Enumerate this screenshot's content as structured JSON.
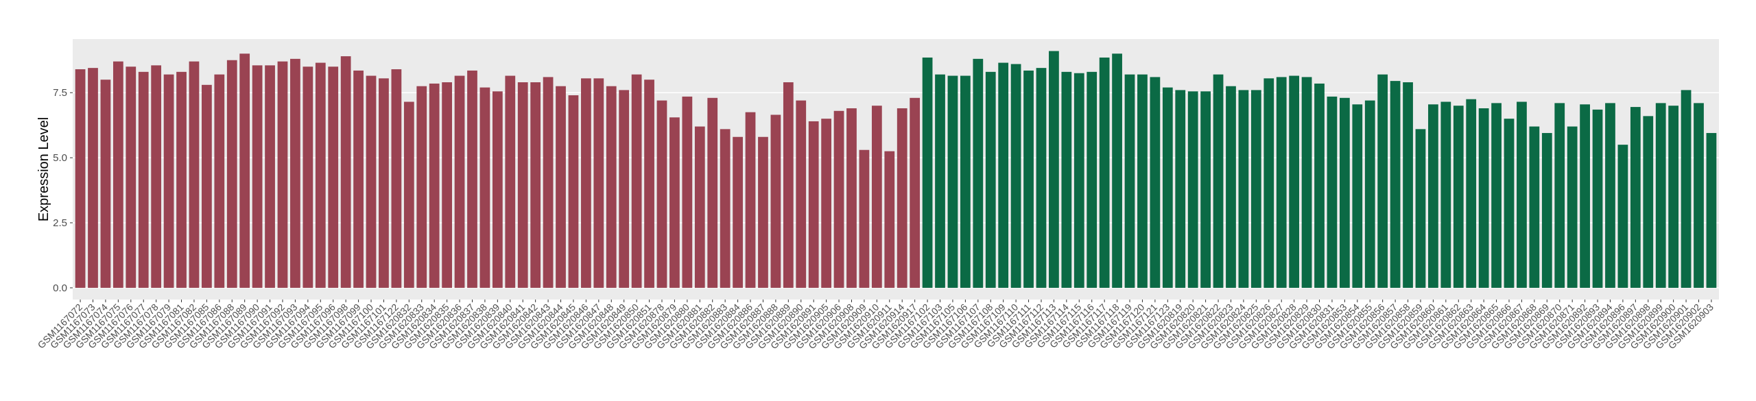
{
  "chart_data": {
    "type": "bar",
    "y_label": "Expression Level",
    "categories": [
      "GSM1167072",
      "GSM1167073",
      "GSM1167074",
      "GSM1167075",
      "GSM1167076",
      "GSM1167077",
      "GSM1167078",
      "GSM1167079",
      "GSM1167081",
      "GSM1167082",
      "GSM1167085",
      "GSM1167086",
      "GSM1167088",
      "GSM1167089",
      "GSM1167090",
      "GSM1167091",
      "GSM1167092",
      "GSM1167093",
      "GSM1167094",
      "GSM1167095",
      "GSM1167096",
      "GSM1167098",
      "GSM1167099",
      "GSM1167100",
      "GSM1167101",
      "GSM1167122",
      "GSM1620832",
      "GSM1620833",
      "GSM1620834",
      "GSM1620835",
      "GSM1620836",
      "GSM1620837",
      "GSM1620838",
      "GSM1620839",
      "GSM1620840",
      "GSM1620841",
      "GSM1620842",
      "GSM1620843",
      "GSM1620844",
      "GSM1620845",
      "GSM1620846",
      "GSM1620847",
      "GSM1620848",
      "GSM1620849",
      "GSM1620850",
      "GSM1620851",
      "GSM1620878",
      "GSM1620879",
      "GSM1620880",
      "GSM1620881",
      "GSM1620882",
      "GSM1620883",
      "GSM1620884",
      "GSM1620886",
      "GSM1620887",
      "GSM1620888",
      "GSM1620889",
      "GSM1620890",
      "GSM1620891",
      "GSM1620905",
      "GSM1620906",
      "GSM1620908",
      "GSM1620909",
      "GSM1620910",
      "GSM1620911",
      "GSM1620914",
      "GSM1620917",
      "GSM1167102",
      "GSM1167103",
      "GSM1167105",
      "GSM1167106",
      "GSM1167107",
      "GSM1167108",
      "GSM1167109",
      "GSM1167110",
      "GSM1167111",
      "GSM1167112",
      "GSM1167113",
      "GSM1167114",
      "GSM1167115",
      "GSM1167116",
      "GSM1167117",
      "GSM1167118",
      "GSM1167119",
      "GSM1167120",
      "GSM1167121",
      "GSM1167123",
      "GSM1620819",
      "GSM1620820",
      "GSM1620821",
      "GSM1620822",
      "GSM1620823",
      "GSM1620824",
      "GSM1620825",
      "GSM1620826",
      "GSM1620827",
      "GSM1620828",
      "GSM1620829",
      "GSM1620830",
      "GSM1620831",
      "GSM1620853",
      "GSM1620854",
      "GSM1620855",
      "GSM1620856",
      "GSM1620857",
      "GSM1620858",
      "GSM1620859",
      "GSM1620860",
      "GSM1620861",
      "GSM1620862",
      "GSM1620863",
      "GSM1620864",
      "GSM1620865",
      "GSM1620866",
      "GSM1620867",
      "GSM1620868",
      "GSM1620869",
      "GSM1620870",
      "GSM1620871",
      "GSM1620892",
      "GSM1620893",
      "GSM1620894",
      "GSM1620896",
      "GSM1620897",
      "GSM1620898",
      "GSM1620899",
      "GSM1620900",
      "GSM1620901",
      "GSM1620902",
      "GSM1620903"
    ],
    "values": [
      8.4,
      8.45,
      8.0,
      8.7,
      8.5,
      8.3,
      8.55,
      8.2,
      8.3,
      8.7,
      7.8,
      8.2,
      8.75,
      9.0,
      8.55,
      8.55,
      8.7,
      8.8,
      8.5,
      8.65,
      8.5,
      8.9,
      8.35,
      8.15,
      8.05,
      8.4,
      7.15,
      7.75,
      7.85,
      7.9,
      8.15,
      8.35,
      7.7,
      7.55,
      8.15,
      7.9,
      7.9,
      8.1,
      7.75,
      7.4,
      8.05,
      8.05,
      7.75,
      7.6,
      8.2,
      8.0,
      7.2,
      6.55,
      7.35,
      6.2,
      7.3,
      6.1,
      5.8,
      6.75,
      5.8,
      6.65,
      7.9,
      7.2,
      6.4,
      6.5,
      6.8,
      6.9,
      5.3,
      7.0,
      5.25,
      6.9,
      7.3,
      8.85,
      8.2,
      8.15,
      8.15,
      8.8,
      8.3,
      8.65,
      8.6,
      8.35,
      8.45,
      9.1,
      8.3,
      8.25,
      8.3,
      8.85,
      9.0,
      8.2,
      8.2,
      8.1,
      7.7,
      7.6,
      7.55,
      7.55,
      8.2,
      7.75,
      7.6,
      7.6,
      8.05,
      8.1,
      8.15,
      8.1,
      7.85,
      7.35,
      7.3,
      7.05,
      7.2,
      8.2,
      7.95,
      7.9,
      6.1,
      7.05,
      7.15,
      7.0,
      7.25,
      6.9,
      7.1,
      6.5,
      7.15,
      6.2,
      5.95,
      7.1,
      6.2,
      7.05,
      6.85,
      7.1,
      5.5,
      6.95,
      6.6,
      7.1,
      7.0,
      7.6,
      7.1,
      5.95
    ],
    "colors": [
      "#9a4352",
      "#9a4352",
      "#9a4352",
      "#9a4352",
      "#9a4352",
      "#9a4352",
      "#9a4352",
      "#9a4352",
      "#9a4352",
      "#9a4352",
      "#9a4352",
      "#9a4352",
      "#9a4352",
      "#9a4352",
      "#9a4352",
      "#9a4352",
      "#9a4352",
      "#9a4352",
      "#9a4352",
      "#9a4352",
      "#9a4352",
      "#9a4352",
      "#9a4352",
      "#9a4352",
      "#9a4352",
      "#9a4352",
      "#9a4352",
      "#9a4352",
      "#9a4352",
      "#9a4352",
      "#9a4352",
      "#9a4352",
      "#9a4352",
      "#9a4352",
      "#9a4352",
      "#9a4352",
      "#9a4352",
      "#9a4352",
      "#9a4352",
      "#9a4352",
      "#9a4352",
      "#9a4352",
      "#9a4352",
      "#9a4352",
      "#9a4352",
      "#9a4352",
      "#9a4352",
      "#9a4352",
      "#9a4352",
      "#9a4352",
      "#9a4352",
      "#9a4352",
      "#9a4352",
      "#9a4352",
      "#9a4352",
      "#9a4352",
      "#9a4352",
      "#9a4352",
      "#9a4352",
      "#9a4352",
      "#9a4352",
      "#9a4352",
      "#9a4352",
      "#9a4352",
      "#9a4352",
      "#9a4352",
      "#9a4352",
      "#0b6a45",
      "#0b6a45",
      "#0b6a45",
      "#0b6a45",
      "#0b6a45",
      "#0b6a45",
      "#0b6a45",
      "#0b6a45",
      "#0b6a45",
      "#0b6a45",
      "#0b6a45",
      "#0b6a45",
      "#0b6a45",
      "#0b6a45",
      "#0b6a45",
      "#0b6a45",
      "#0b6a45",
      "#0b6a45",
      "#0b6a45",
      "#0b6a45",
      "#0b6a45",
      "#0b6a45",
      "#0b6a45",
      "#0b6a45",
      "#0b6a45",
      "#0b6a45",
      "#0b6a45",
      "#0b6a45",
      "#0b6a45",
      "#0b6a45",
      "#0b6a45",
      "#0b6a45",
      "#0b6a45",
      "#0b6a45",
      "#0b6a45",
      "#0b6a45",
      "#0b6a45",
      "#0b6a45",
      "#0b6a45",
      "#0b6a45",
      "#0b6a45",
      "#0b6a45",
      "#0b6a45",
      "#0b6a45",
      "#0b6a45",
      "#0b6a45",
      "#0b6a45",
      "#0b6a45",
      "#0b6a45",
      "#0b6a45",
      "#0b6a45",
      "#0b6a45",
      "#0b6a45",
      "#0b6a45",
      "#0b6a45",
      "#0b6a45",
      "#0b6a45",
      "#0b6a45",
      "#0b6a45",
      "#0b6a45",
      "#0b6a45",
      "#0b6a45",
      "#0b6a45"
    ],
    "ylim": [
      -0.45,
      9.56
    ],
    "yticks": [
      {
        "value": 0,
        "label": "0.0"
      },
      2.5,
      {
        "value": 5,
        "label": "5.0"
      },
      7.5
    ],
    "grid": true
  }
}
